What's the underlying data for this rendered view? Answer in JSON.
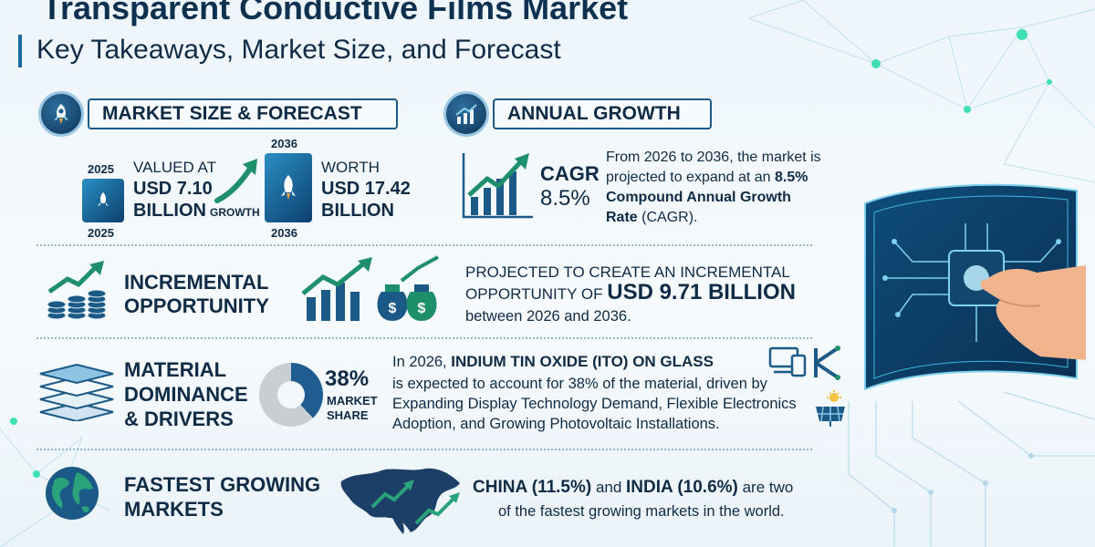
{
  "header": {
    "title": "Transparent Conductive Films Market",
    "subtitle": "Key Takeaways, Market Size, and Forecast"
  },
  "market_size": {
    "heading": "MARKET SIZE & FORECAST",
    "year_start_top": "2025",
    "year_start_bottom": "2025",
    "year_end_top": "2036",
    "year_end_bottom": "2036",
    "valued_label": "VALUED AT",
    "valued_line1": "USD 7.10",
    "valued_line2": "BILLION",
    "growth_label": "GROWTH",
    "worth_label": "WORTH",
    "worth_line1": "USD 17.42",
    "worth_line2": "BILLION"
  },
  "annual_growth": {
    "heading": "ANNUAL GROWTH",
    "cagr_label": "CAGR",
    "cagr_value": "8.5%",
    "line1": "From 2026 to 2036, the market is",
    "line2_pre": "projected to expand at an ",
    "line2_bold": "8.5%",
    "line3_bold": "Compound Annual Growth",
    "line4_bold": "Rate",
    "line4_rest": " (CAGR)."
  },
  "incremental": {
    "heading_line1": "INCREMENTAL",
    "heading_line2": "OPPORTUNITY",
    "line1": "PROJECTED TO CREATE AN INCREMENTAL",
    "line2_pre": "OPPORTUNITY OF ",
    "line2_bold": "USD 9.71 BILLION",
    "line3": "between 2026 and 2036."
  },
  "material": {
    "heading_line1": "MATERIAL",
    "heading_line2": "DOMINANCE",
    "heading_line3": "& DRIVERS",
    "share_value": "38%",
    "share_label1": "MARKET",
    "share_label2": "SHARE",
    "share_fraction": 0.38,
    "line1_pre": "In 2026, ",
    "line1_bold": "INDIUM TIN OXIDE (ITO) ON GLASS",
    "line2": "is expected to account for 38% of the material, driven by",
    "line3": "Expanding Display Technology Demand, Flexible Electronics",
    "line4": "Adoption, and Growing Photovoltaic Installations."
  },
  "fastest": {
    "heading_line1": "FASTEST GROWING",
    "heading_line2": "MARKETS",
    "line1_bold": "CHINA (11.5%)",
    "line1_mid": " and ",
    "line1_bold2": "INDIA (10.6%)",
    "line1_rest": " are two",
    "line2": "of the fastest growing markets in the world."
  },
  "colors": {
    "navy": "#0f2b45",
    "blue": "#1b5a87",
    "teal": "#2aa37a",
    "green_arrow": "#1e8f6b"
  },
  "icons": {
    "rocket": "rocket-icon",
    "chart": "bar-chart-icon",
    "coins": "coins-growth-icon",
    "layers": "layers-icon",
    "globe": "globe-icon",
    "devices": "devices-icon",
    "solar": "solar-panel-icon",
    "circuit": "circuit-icon"
  }
}
